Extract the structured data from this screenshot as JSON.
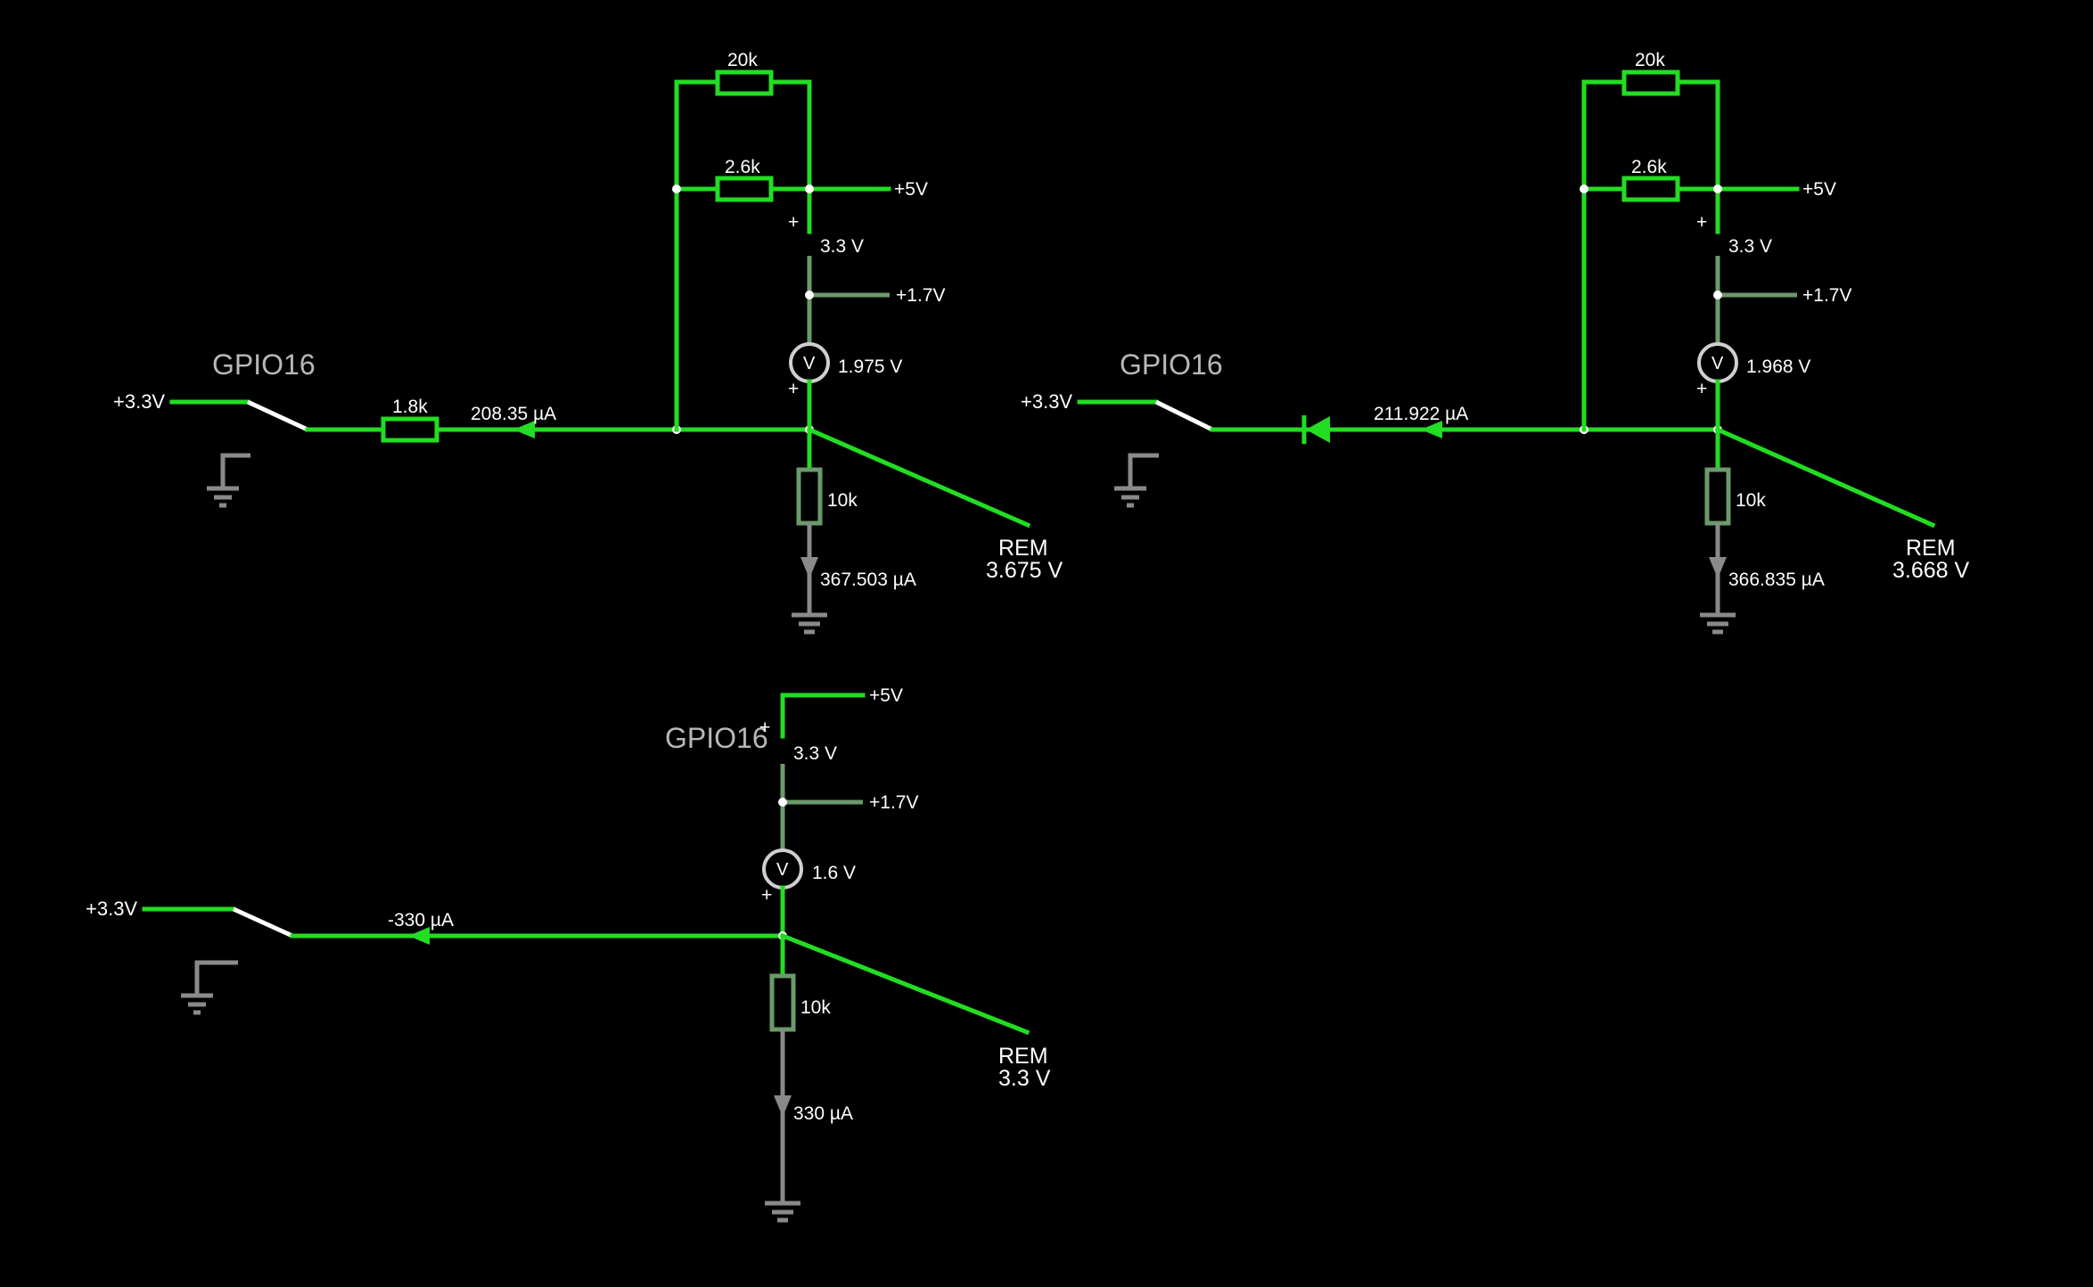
{
  "circuit_top_left": {
    "gpio_label": "GPIO16",
    "source_label": "+3.3V",
    "series_resistor": "1.8k",
    "current_left": "208.35 µA",
    "r_top": "20k",
    "r_mid": "2.6k",
    "plus5": "+5V",
    "plus_sign_upper": "+",
    "v33": "3.3 V",
    "plus17": "+1.7V",
    "meter_symbol": "V",
    "meter_reading": "1.975 V",
    "plus_sign_lower": "+",
    "r_pulldown": "10k",
    "current_down": "367.503 µA",
    "rem_label": "REM",
    "rem_value": "3.675 V"
  },
  "circuit_top_right": {
    "gpio_label": "GPIO16",
    "source_label": "+3.3V",
    "current_left": "211.922 µA",
    "r_top": "20k",
    "r_mid": "2.6k",
    "plus5": "+5V",
    "plus_sign_upper": "+",
    "v33": "3.3 V",
    "plus17": "+1.7V",
    "meter_symbol": "V",
    "meter_reading": "1.968 V",
    "plus_sign_lower": "+",
    "r_pulldown": "10k",
    "current_down": "366.835 µA",
    "rem_label": "REM",
    "rem_value": "3.668 V"
  },
  "circuit_bottom": {
    "gpio_label": "GPIO16",
    "source_label": "+3.3V",
    "current_left": "-330 µA",
    "plus5": "+5V",
    "plus_sign_upper": "+",
    "v33": "3.3 V",
    "plus17": "+1.7V",
    "meter_symbol": "V",
    "meter_reading": "1.6 V",
    "plus_sign_lower": "+",
    "r_pulldown": "10k",
    "current_down": "330 µA",
    "rem_label": "REM",
    "rem_value": "3.3 V"
  },
  "colors": {
    "background": "#000000",
    "wire_active": "#22dd22",
    "wire_dim": "#6b9a6b",
    "ground": "#8a8a8a",
    "switch": "#ffffff"
  }
}
